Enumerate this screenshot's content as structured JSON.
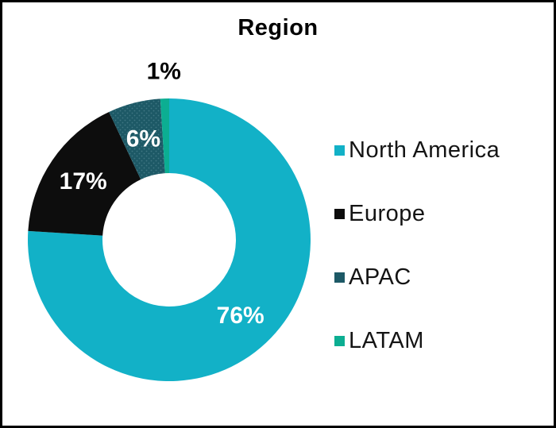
{
  "frame": {
    "background_color": "#ffffff",
    "border_color": "#000000"
  },
  "chart_data": {
    "type": "pie",
    "subtype": "donut",
    "title": "Region",
    "categories": [
      "North America",
      "Europe",
      "APAC",
      "LATAM"
    ],
    "values": [
      76,
      17,
      6,
      1
    ],
    "data_labels": [
      "76%",
      "17%",
      "6%",
      "1%"
    ],
    "colors": [
      "#12b1c7",
      "#0d0d0d",
      "#1d5966",
      "#0cae92"
    ],
    "patterns": [
      "solid",
      "solid",
      "dots",
      "solid"
    ],
    "pattern_dot_color": "#3f7683",
    "start_angle_deg": 0,
    "direction": "clockwise",
    "legend_position": "right",
    "label_inside_color": "#ffffff",
    "label_outside_color": "#000000",
    "outside_label_threshold_pct": 2
  }
}
